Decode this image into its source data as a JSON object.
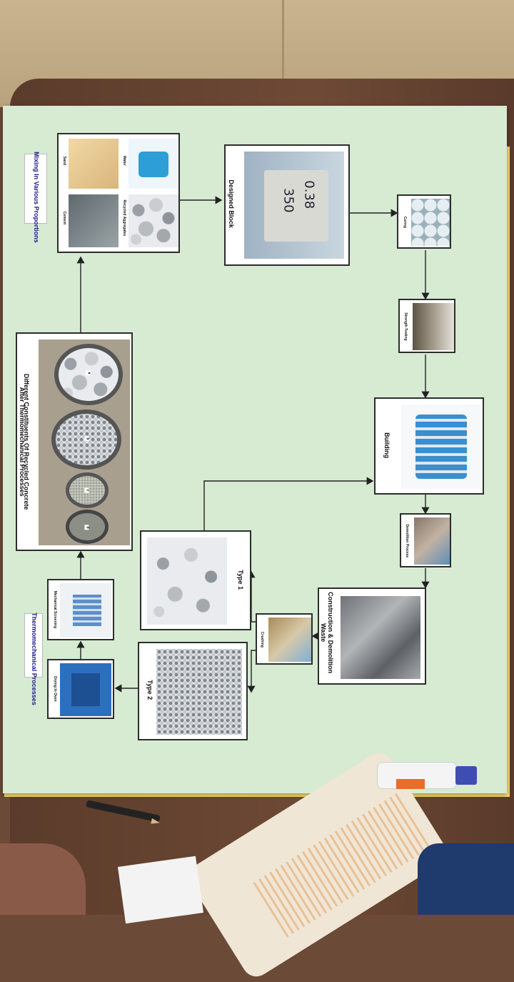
{
  "poster": {
    "tags": {
      "mixing": "Mixing In Various Proportions",
      "thermo": "Thermomechanical Processes"
    },
    "mix_items": {
      "sand": "Sand",
      "cement": "Cement",
      "water": "Water",
      "recycled": "Recycled Aggregates"
    },
    "designed_block": {
      "title": "Designed Block",
      "handwriting_line1": "0.38",
      "handwriting_line2": "350"
    },
    "constituents": {
      "title_line1": "Different Constituents Of Recycled Concrete",
      "title_line2": "After Thermomechanical Processes",
      "bowl_labels": [
        "a",
        "b",
        "c",
        "d"
      ]
    },
    "small_steps": {
      "curing": "Curing",
      "strength": "Strength Testing",
      "demolition": "Demolition Process",
      "crushing": "Crushing",
      "screening": "Mechanical Screening",
      "oven": "Drying In Oven"
    },
    "building": "Building",
    "cdw_line1": "Construction & Demolition",
    "cdw_line2": "Waste",
    "type1": "Type 1",
    "type2": "Type 2"
  },
  "colors": {
    "poster_bg": "#d6ebd2",
    "yellow_sheet": "#f2d76a",
    "table": "#6b4a37",
    "tag_text": "#1b1b8a"
  }
}
